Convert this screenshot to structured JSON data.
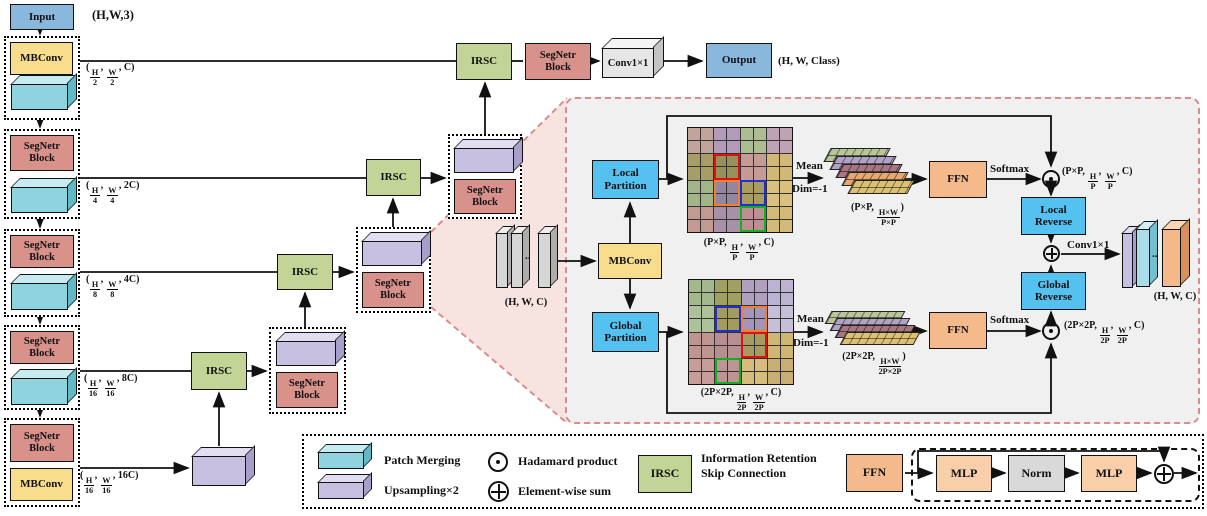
{
  "colors": {
    "io_blue": "#8ab8dc",
    "mbconv": "#f8dd8d",
    "segnetr": "#d9918b",
    "irsc": "#c3d596",
    "partition_blue": "#55c1f0",
    "ffn_orange": "#f5ba8b",
    "mlp_orange": "#f8cfa8",
    "norm_gray": "#d9d9d9",
    "patch_cyan": "#8ed3dd",
    "upsample_purple": "#c7c0e0",
    "panel_bg": "#f0f0f0",
    "panel_border": "#d98c8c"
  },
  "diagram": {
    "input": "Input",
    "input_dims": "(H,W,3)",
    "mbconv": "MBConv",
    "segnetr_block": "SegNetr Block",
    "irsc": "IRSC",
    "conv1x1": "Conv1×1",
    "output": "Output",
    "output_dims": "(H, W, Class)",
    "stage_dims": [
      "(H/2, W/2, C)",
      "(H/4, W/4, 2C)",
      "(H/8, W/8, 4C)",
      "(H/16, W/16, 8C)",
      "(H/16, W/16, 16C)"
    ]
  },
  "panel": {
    "input_dims": "(H, W, C)",
    "mbconv": "MBConv",
    "local_partition": "Local Partition",
    "global_partition": "Global Partition",
    "mean": "Mean",
    "dim": "Dim=-1",
    "ffn": "FFN",
    "softmax": "Softmax",
    "local_reverse": "Local Reverse",
    "global_reverse": "Global Reverse",
    "conv1x1": "Conv1×1",
    "out_dims": "(H, W, C)",
    "dots": "..",
    "local_grid_dims": "(P×P, H/P, W/P, C)",
    "global_grid_dims": "(2P×2P, H/2P, W/2P, C)",
    "local_token_dims": "(P×P, H×W/P×P)",
    "global_token_dims": "(2P×2P, H×W/2P×2P)",
    "local_out_dims": "(P×P, H/P, W/P, C)",
    "global_out_dims": "(2P×2P, H/2P, W/2P, C)"
  },
  "legend": {
    "patch_merging": "Patch Merging",
    "upsampling": "Upsampling×2",
    "hadamard": "Hadamard product",
    "elementwise": "Element-wise sum",
    "irsc": "IRSC",
    "irsc_desc": "Information Retention Skip Connection",
    "ffn": "FFN",
    "mlp1": "MLP",
    "norm": "Norm",
    "mlp2": "MLP"
  },
  "grids": {
    "local": {
      "palette": [
        "#c1a49a",
        "#b39ab8",
        "#aebc92",
        "#bfa2b4",
        "#a89d66",
        "#97905a",
        "#c69b96",
        "#d2b876",
        "#a2b589",
        "#93879f",
        "#a89c60",
        "#d8c080",
        "#c29a92",
        "#a890a8",
        "#bd8f92",
        "#d2ba79"
      ],
      "outlines": [
        {
          "color": "#e01010",
          "col": 2,
          "row": 2
        },
        {
          "color": "#f08030",
          "col": 2,
          "row": 4
        },
        {
          "color": "#2030d0",
          "col": 4,
          "row": 4
        },
        {
          "color": "#10b020",
          "col": 4,
          "row": 6
        }
      ]
    },
    "global": {
      "palette": [
        "#a3b88c",
        "#a0a062",
        "#b0a0bf",
        "#bcb3d2",
        "#adc29a",
        "#a39a5e",
        "#a795b8",
        "#c6bfd9",
        "#c0948f",
        "#b88f91",
        "#a79c60",
        "#d0b673",
        "#c89d98",
        "#bd9496",
        "#d6bd7b",
        "#c9ae74"
      ],
      "outlines": [
        {
          "color": "#2030d0",
          "col": 2,
          "row": 2
        },
        {
          "color": "#f08030",
          "col": 4,
          "row": 2
        },
        {
          "color": "#e01010",
          "col": 4,
          "row": 4
        },
        {
          "color": "#10b020",
          "col": 2,
          "row": 6
        }
      ]
    }
  },
  "tiles": {
    "local": [
      "#b9c697",
      "#b2a2c4",
      "#a87680",
      "#e6a872",
      "#dcc172"
    ],
    "global": [
      "#b9c697",
      "#b2a2c4",
      "#a87680",
      "#dcc172"
    ]
  }
}
